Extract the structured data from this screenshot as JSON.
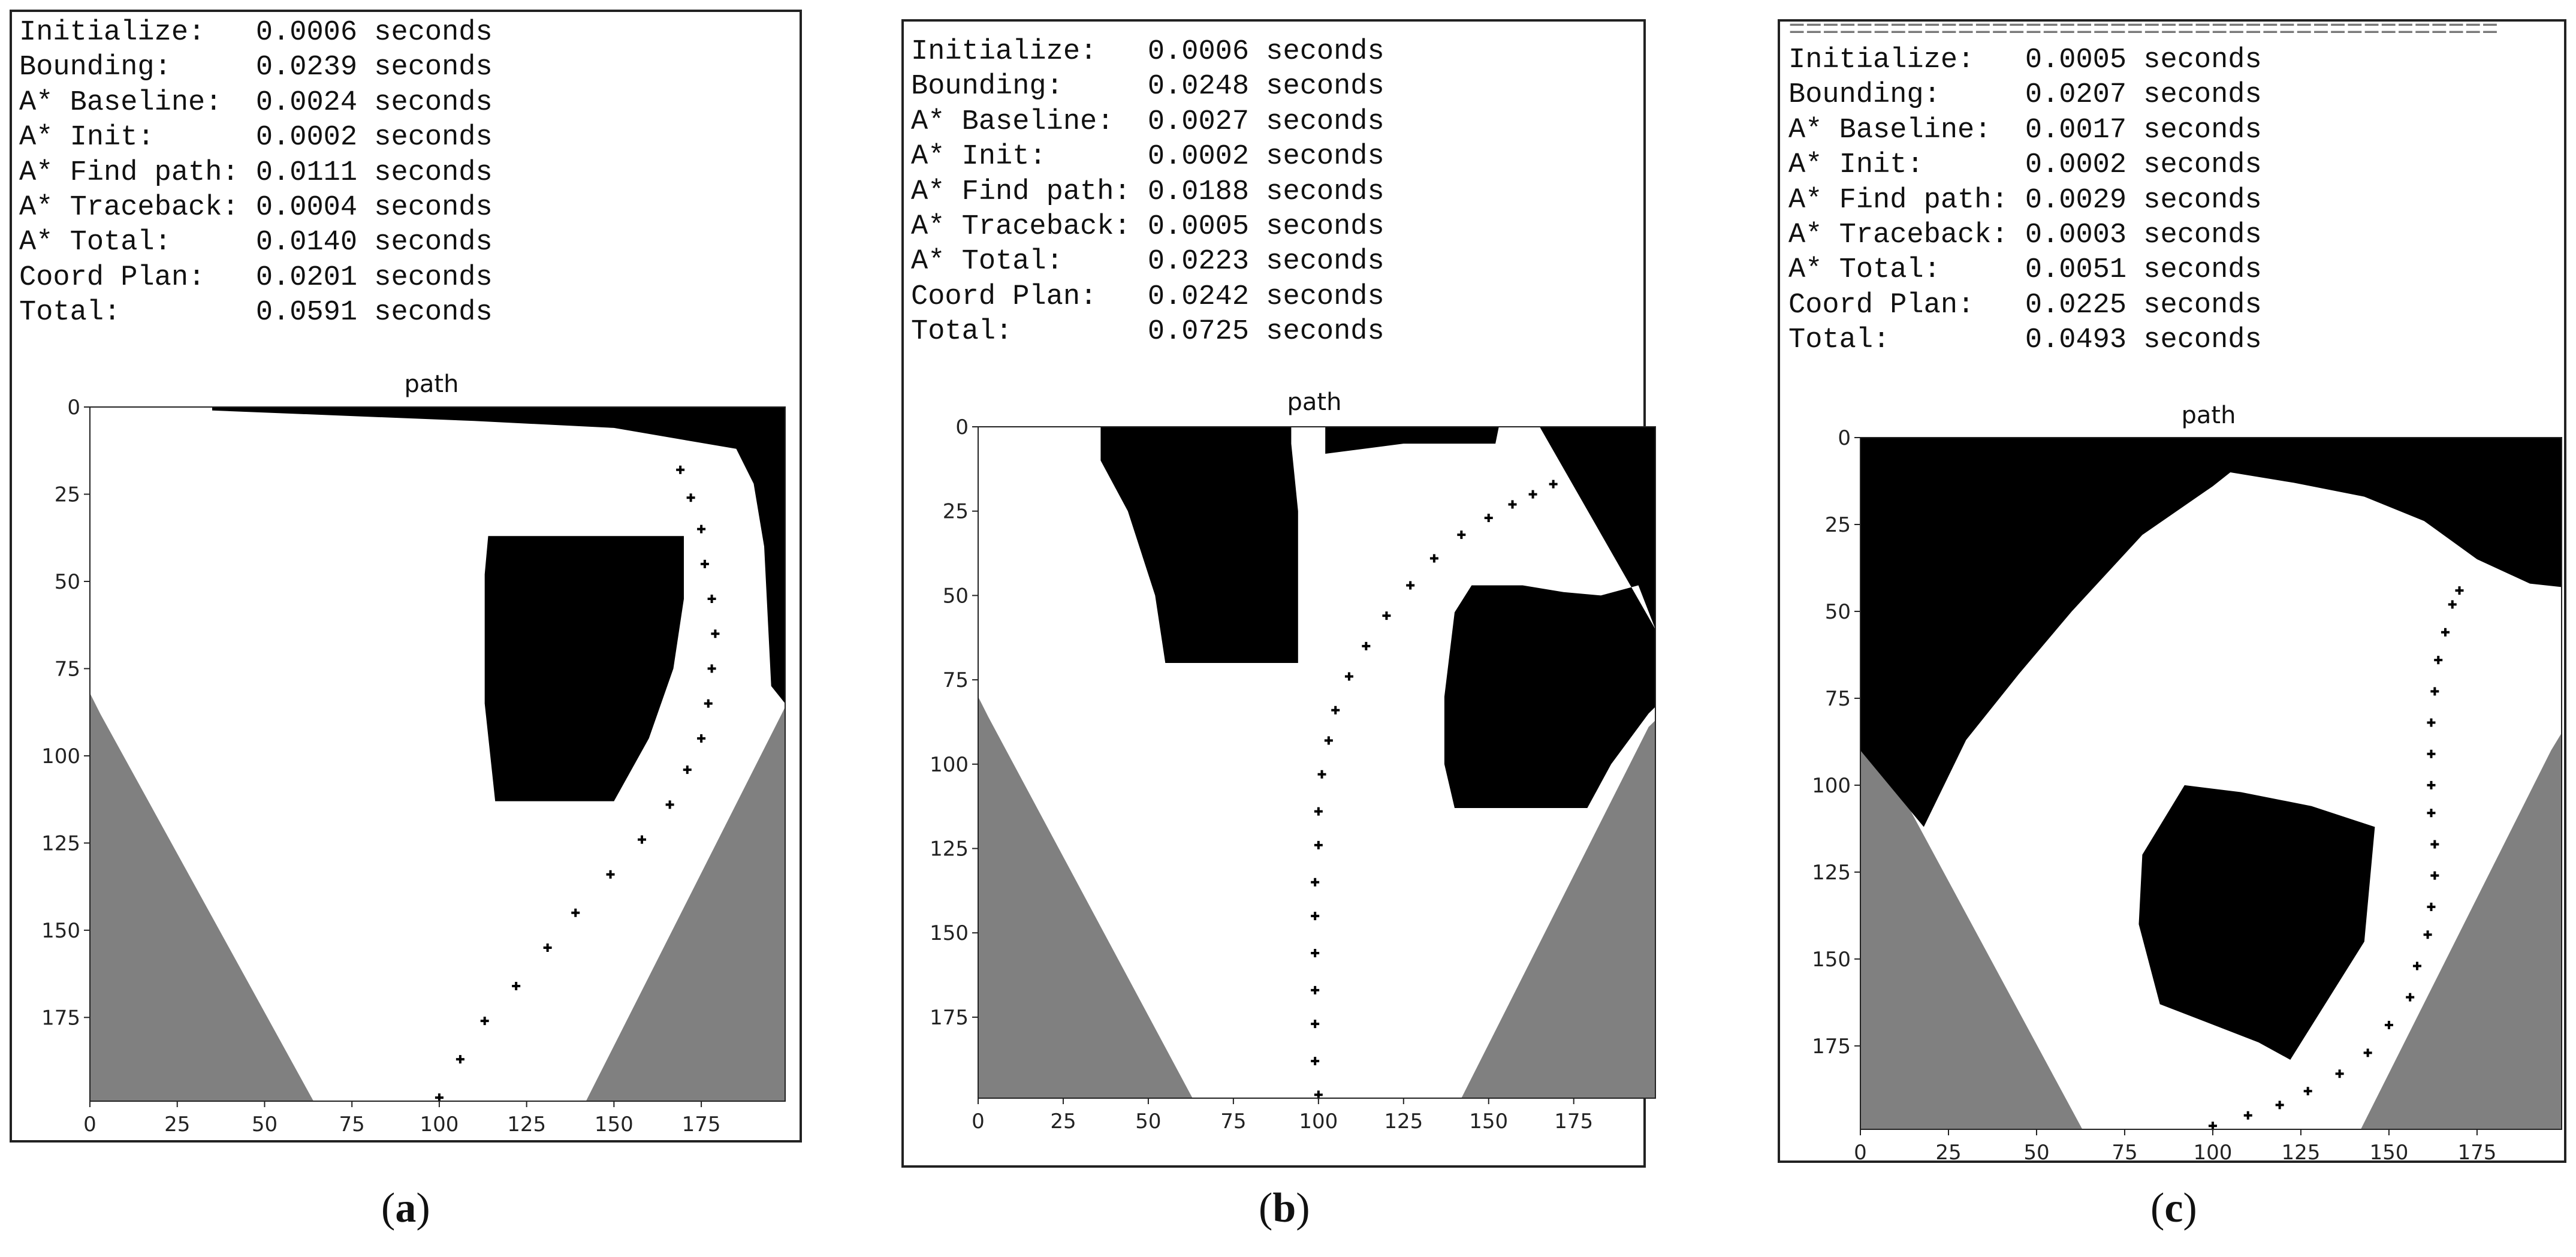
{
  "panels": [
    {
      "id": "a",
      "separator": "",
      "timings": [
        {
          "label": "Initialize:",
          "value": "0.0006",
          "unit": "seconds"
        },
        {
          "label": "Bounding:",
          "value": "0.0239",
          "unit": "seconds"
        },
        {
          "label": "A* Baseline:",
          "value": "0.0024",
          "unit": "seconds"
        },
        {
          "label": "A* Init:",
          "value": "0.0002",
          "unit": "seconds"
        },
        {
          "label": "A* Find path:",
          "value": "0.0111",
          "unit": "seconds"
        },
        {
          "label": "A* Traceback:",
          "value": "0.0004",
          "unit": "seconds"
        },
        {
          "label": "A* Total:",
          "value": "0.0140",
          "unit": "seconds"
        },
        {
          "label": "Coord Plan:",
          "value": "0.0201",
          "unit": "seconds"
        },
        {
          "label": "Total:",
          "value": "0.0591",
          "unit": "seconds"
        }
      ],
      "caption_open": "(",
      "caption_letter": "a",
      "caption_close": ")"
    },
    {
      "id": "b",
      "separator": "",
      "timings": [
        {
          "label": "Initialize:",
          "value": "0.0006",
          "unit": "seconds"
        },
        {
          "label": "Bounding:",
          "value": "0.0248",
          "unit": "seconds"
        },
        {
          "label": "A* Baseline:",
          "value": "0.0027",
          "unit": "seconds"
        },
        {
          "label": "A* Init:",
          "value": "0.0002",
          "unit": "seconds"
        },
        {
          "label": "A* Find path:",
          "value": "0.0188",
          "unit": "seconds"
        },
        {
          "label": "A* Traceback:",
          "value": "0.0005",
          "unit": "seconds"
        },
        {
          "label": "A* Total:",
          "value": "0.0223",
          "unit": "seconds"
        },
        {
          "label": "Coord Plan:",
          "value": "0.0242",
          "unit": "seconds"
        },
        {
          "label": "Total:",
          "value": "0.0725",
          "unit": "seconds"
        }
      ],
      "caption_open": "(",
      "caption_letter": "b",
      "caption_close": ")"
    },
    {
      "id": "c",
      "separator": "==========================================",
      "timings": [
        {
          "label": "Initialize:",
          "value": "0.0005",
          "unit": "seconds"
        },
        {
          "label": "Bounding:",
          "value": "0.0207",
          "unit": "seconds"
        },
        {
          "label": "A* Baseline:",
          "value": "0.0017",
          "unit": "seconds"
        },
        {
          "label": "A* Init:",
          "value": "0.0002",
          "unit": "seconds"
        },
        {
          "label": "A* Find path:",
          "value": "0.0029",
          "unit": "seconds"
        },
        {
          "label": "A* Traceback:",
          "value": "0.0003",
          "unit": "seconds"
        },
        {
          "label": "A* Total:",
          "value": "0.0051",
          "unit": "seconds"
        },
        {
          "label": "Coord Plan:",
          "value": "0.0225",
          "unit": "seconds"
        },
        {
          "label": "Total:",
          "value": "0.0493",
          "unit": "seconds"
        }
      ],
      "caption_open": "(",
      "caption_letter": "c",
      "caption_close": ")"
    }
  ],
  "chart_data": [
    {
      "panel": "a",
      "type": "heatmap",
      "title": "path",
      "xlim": [
        0,
        199
      ],
      "ylim": [
        199,
        0
      ],
      "x_ticks": [
        0,
        25,
        50,
        75,
        100,
        125,
        150,
        175
      ],
      "y_ticks": [
        0,
        25,
        50,
        75,
        100,
        125,
        150,
        175
      ],
      "colors": {
        "free": "#ffffff",
        "obstacle": "#000000",
        "out_of_view": "#808080",
        "path": "#000000"
      },
      "obstacles": [
        [
          [
            35,
            0
          ],
          [
            199,
            0
          ],
          [
            199,
            85
          ],
          [
            195,
            80
          ],
          [
            193,
            40
          ],
          [
            190,
            22
          ],
          [
            185,
            12
          ],
          [
            150,
            6
          ],
          [
            110,
            4
          ],
          [
            60,
            2
          ],
          [
            35,
            1
          ]
        ],
        [
          [
            114,
            37
          ],
          [
            170,
            37
          ],
          [
            170,
            55
          ],
          [
            167,
            75
          ],
          [
            160,
            95
          ],
          [
            150,
            113
          ],
          [
            116,
            113
          ],
          [
            113,
            85
          ],
          [
            113,
            48
          ]
        ]
      ],
      "out_of_view": [
        [
          [
            0,
            82
          ],
          [
            3,
            88
          ],
          [
            64,
            199
          ],
          [
            0,
            199
          ]
        ],
        [
          [
            199,
            86
          ],
          [
            198,
            88
          ],
          [
            142,
            199
          ],
          [
            199,
            199
          ]
        ]
      ],
      "path": [
        [
          100,
          198
        ],
        [
          106,
          187
        ],
        [
          113,
          176
        ],
        [
          122,
          166
        ],
        [
          131,
          155
        ],
        [
          139,
          145
        ],
        [
          149,
          134
        ],
        [
          158,
          124
        ],
        [
          166,
          114
        ],
        [
          171,
          104
        ],
        [
          175,
          95
        ],
        [
          177,
          85
        ],
        [
          178,
          75
        ],
        [
          179,
          65
        ],
        [
          178,
          55
        ],
        [
          176,
          45
        ],
        [
          175,
          35
        ],
        [
          172,
          26
        ],
        [
          169,
          18
        ]
      ]
    },
    {
      "panel": "b",
      "type": "heatmap",
      "title": "path",
      "xlim": [
        0,
        199
      ],
      "ylim": [
        199,
        0
      ],
      "x_ticks": [
        0,
        25,
        50,
        75,
        100,
        125,
        150,
        175
      ],
      "y_ticks": [
        0,
        25,
        50,
        75,
        100,
        125,
        150,
        175
      ],
      "colors": {
        "free": "#ffffff",
        "obstacle": "#000000",
        "out_of_view": "#808080",
        "path": "#000000"
      },
      "obstacles": [
        [
          [
            36,
            0
          ],
          [
            92,
            0
          ],
          [
            92,
            5
          ],
          [
            94,
            25
          ],
          [
            94,
            70
          ],
          [
            55,
            70
          ],
          [
            52,
            50
          ],
          [
            44,
            25
          ],
          [
            36,
            10
          ]
        ],
        [
          [
            102,
            0
          ],
          [
            153,
            0
          ],
          [
            152,
            5
          ],
          [
            125,
            5
          ],
          [
            102,
            8
          ]
        ],
        [
          [
            165,
            0
          ],
          [
            199,
            0
          ],
          [
            199,
            60
          ],
          [
            194,
            47
          ],
          [
            183,
            50
          ],
          [
            172,
            49
          ],
          [
            160,
            47
          ],
          [
            145,
            47
          ],
          [
            140,
            55
          ],
          [
            137,
            80
          ],
          [
            137,
            100
          ],
          [
            140,
            113
          ],
          [
            179,
            113
          ],
          [
            186,
            100
          ],
          [
            197,
            85
          ],
          [
            199,
            83
          ],
          [
            199,
            60
          ]
        ]
      ],
      "out_of_view": [
        [
          [
            0,
            80
          ],
          [
            3,
            86
          ],
          [
            63,
            199
          ],
          [
            0,
            199
          ]
        ],
        [
          [
            199,
            87
          ],
          [
            197,
            89
          ],
          [
            142,
            199
          ],
          [
            199,
            199
          ]
        ]
      ],
      "path": [
        [
          100,
          198
        ],
        [
          99,
          188
        ],
        [
          99,
          177
        ],
        [
          99,
          167
        ],
        [
          99,
          156
        ],
        [
          99,
          145
        ],
        [
          99,
          135
        ],
        [
          100,
          124
        ],
        [
          100,
          114
        ],
        [
          101,
          103
        ],
        [
          103,
          93
        ],
        [
          105,
          84
        ],
        [
          109,
          74
        ],
        [
          114,
          65
        ],
        [
          120,
          56
        ],
        [
          127,
          47
        ],
        [
          134,
          39
        ],
        [
          142,
          32
        ],
        [
          150,
          27
        ],
        [
          157,
          23
        ],
        [
          163,
          20
        ],
        [
          169,
          17
        ]
      ]
    },
    {
      "panel": "c",
      "type": "heatmap",
      "title": "path",
      "xlim": [
        0,
        199
      ],
      "ylim": [
        199,
        0
      ],
      "x_ticks": [
        0,
        25,
        50,
        75,
        100,
        125,
        150,
        175
      ],
      "y_ticks": [
        0,
        25,
        50,
        75,
        100,
        125,
        150,
        175
      ],
      "colors": {
        "free": "#ffffff",
        "obstacle": "#000000",
        "out_of_view": "#808080",
        "path": "#000000"
      },
      "obstacles": [
        [
          [
            0,
            0
          ],
          [
            199,
            0
          ],
          [
            199,
            43
          ],
          [
            190,
            42
          ],
          [
            175,
            35
          ],
          [
            160,
            24
          ],
          [
            143,
            17
          ],
          [
            123,
            13
          ],
          [
            105,
            10
          ],
          [
            100,
            14
          ],
          [
            80,
            28
          ],
          [
            60,
            50
          ],
          [
            45,
            68
          ],
          [
            30,
            87
          ],
          [
            18,
            112
          ],
          [
            0,
            90
          ]
        ],
        [
          [
            80,
            120
          ],
          [
            92,
            100
          ],
          [
            108,
            102
          ],
          [
            128,
            106
          ],
          [
            146,
            112
          ],
          [
            143,
            145
          ],
          [
            122,
            179
          ],
          [
            113,
            174
          ],
          [
            85,
            163
          ],
          [
            79,
            140
          ]
        ]
      ],
      "out_of_view": [
        [
          [
            0,
            82
          ],
          [
            5,
            90
          ],
          [
            63,
            199
          ],
          [
            0,
            199
          ]
        ],
        [
          [
            199,
            85
          ],
          [
            196,
            90
          ],
          [
            142,
            199
          ],
          [
            199,
            199
          ]
        ]
      ],
      "path": [
        [
          100,
          198
        ],
        [
          110,
          195
        ],
        [
          119,
          192
        ],
        [
          127,
          188
        ],
        [
          136,
          183
        ],
        [
          144,
          177
        ],
        [
          150,
          169
        ],
        [
          156,
          161
        ],
        [
          158,
          152
        ],
        [
          161,
          143
        ],
        [
          162,
          135
        ],
        [
          163,
          126
        ],
        [
          163,
          117
        ],
        [
          162,
          108
        ],
        [
          162,
          100
        ],
        [
          162,
          91
        ],
        [
          162,
          82
        ],
        [
          163,
          73
        ],
        [
          164,
          64
        ],
        [
          166,
          56
        ],
        [
          168,
          48
        ],
        [
          170,
          44
        ]
      ]
    }
  ]
}
